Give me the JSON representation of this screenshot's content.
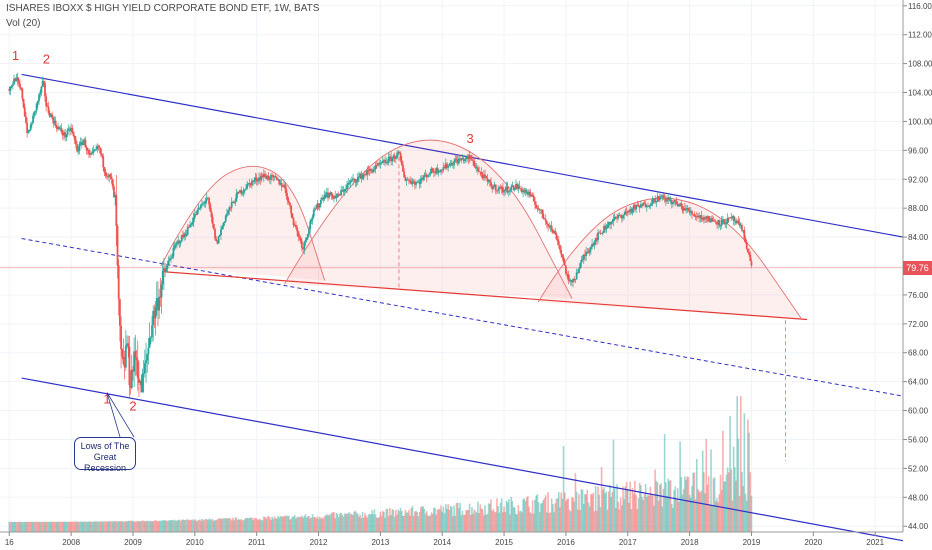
{
  "header": {
    "title": "ISHARES IBOXX $ HIGH YIELD CORPORATE BOND ETF, 1W, BATS",
    "volume_label": "Vol (20)"
  },
  "callout": {
    "line1": "Lows of The",
    "line2": "Great Recession"
  },
  "price_tag": {
    "value": "79.76",
    "color": "#e8535a"
  },
  "colors": {
    "up": "#26a69a",
    "down": "#ef5350",
    "trend": "#3030c8",
    "pattern": "#e53935"
  },
  "chart_data": {
    "type": "candlestick",
    "title": "ISHARES IBOXX $ HIGH YIELD CORPORATE BOND ETF, 1W, BATS",
    "x_tick_labels": [
      "16",
      "2008",
      "2009",
      "2010",
      "2011",
      "2012",
      "2013",
      "2014",
      "2015",
      "2016",
      "2017",
      "2018",
      "2019",
      "2020",
      "2021"
    ],
    "x_tick_years": [
      2007.0,
      2008.0,
      2009.0,
      2010.0,
      2011.0,
      2012.0,
      2013.0,
      2014.0,
      2015.0,
      2016.0,
      2017.0,
      2018.0,
      2019.0,
      2020.0,
      2021.0
    ],
    "xlim": [
      2006.85,
      2021.45
    ],
    "y_ticks": [
      "44.00",
      "48.00",
      "52.00",
      "56.00",
      "60.00",
      "64.00",
      "68.00",
      "72.00",
      "76.00",
      "80.00",
      "84.00",
      "88.00",
      "92.00",
      "96.00",
      "100.00",
      "104.00",
      "108.00",
      "112.00",
      "116.00"
    ],
    "ylim": [
      43.2,
      116.8
    ],
    "last_price": 79.76,
    "price_series": [
      [
        2007.0,
        104.5
      ],
      [
        2007.1,
        106.0
      ],
      [
        2007.2,
        104.0
      ],
      [
        2007.3,
        98.0
      ],
      [
        2007.4,
        101.0
      ],
      [
        2007.5,
        104.0
      ],
      [
        2007.55,
        105.5
      ],
      [
        2007.6,
        102.0
      ],
      [
        2007.75,
        99.5
      ],
      [
        2007.9,
        98.0
      ],
      [
        2008.0,
        99.0
      ],
      [
        2008.1,
        96.0
      ],
      [
        2008.2,
        97.5
      ],
      [
        2008.3,
        95.0
      ],
      [
        2008.45,
        96.5
      ],
      [
        2008.55,
        93.0
      ],
      [
        2008.65,
        92.0
      ],
      [
        2008.72,
        88.0
      ],
      [
        2008.76,
        76.0
      ],
      [
        2008.8,
        68.0
      ],
      [
        2008.85,
        65.0
      ],
      [
        2008.9,
        70.0
      ],
      [
        2008.95,
        64.0
      ],
      [
        2009.05,
        68.0
      ],
      [
        2009.12,
        62.5
      ],
      [
        2009.2,
        66.0
      ],
      [
        2009.3,
        72.0
      ],
      [
        2009.45,
        77.0
      ],
      [
        2009.55,
        80.0
      ],
      [
        2009.7,
        83.0
      ],
      [
        2009.85,
        84.5
      ],
      [
        2010.0,
        87.0
      ],
      [
        2010.2,
        89.5
      ],
      [
        2010.35,
        83.0
      ],
      [
        2010.5,
        87.0
      ],
      [
        2010.7,
        90.0
      ],
      [
        2010.9,
        91.5
      ],
      [
        2011.1,
        92.5
      ],
      [
        2011.3,
        92.0
      ],
      [
        2011.45,
        91.0
      ],
      [
        2011.6,
        86.0
      ],
      [
        2011.75,
        82.5
      ],
      [
        2011.9,
        87.0
      ],
      [
        2012.1,
        90.0
      ],
      [
        2012.3,
        89.5
      ],
      [
        2012.5,
        91.5
      ],
      [
        2012.7,
        92.5
      ],
      [
        2012.9,
        93.5
      ],
      [
        2013.1,
        94.5
      ],
      [
        2013.3,
        95.5
      ],
      [
        2013.4,
        92.0
      ],
      [
        2013.6,
        91.5
      ],
      [
        2013.8,
        93.0
      ],
      [
        2014.0,
        93.5
      ],
      [
        2014.2,
        94.5
      ],
      [
        2014.45,
        95.0
      ],
      [
        2014.6,
        93.0
      ],
      [
        2014.8,
        91.0
      ],
      [
        2015.0,
        90.5
      ],
      [
        2015.2,
        91.0
      ],
      [
        2015.4,
        90.0
      ],
      [
        2015.55,
        88.0
      ],
      [
        2015.7,
        86.0
      ],
      [
        2015.85,
        84.0
      ],
      [
        2015.95,
        81.0
      ],
      [
        2016.05,
        77.5
      ],
      [
        2016.15,
        78.5
      ],
      [
        2016.3,
        81.5
      ],
      [
        2016.5,
        84.0
      ],
      [
        2016.7,
        86.0
      ],
      [
        2016.9,
        87.0
      ],
      [
        2017.1,
        88.0
      ],
      [
        2017.3,
        88.5
      ],
      [
        2017.5,
        89.5
      ],
      [
        2017.7,
        89.0
      ],
      [
        2017.9,
        88.0
      ],
      [
        2018.1,
        87.0
      ],
      [
        2018.3,
        86.5
      ],
      [
        2018.5,
        86.0
      ],
      [
        2018.7,
        86.5
      ],
      [
        2018.85,
        85.0
      ],
      [
        2018.95,
        82.0
      ],
      [
        2019.0,
        79.76
      ]
    ],
    "annotations": [
      {
        "text": "1",
        "x": 2007.1,
        "y": 108.5,
        "color": "#e53935"
      },
      {
        "text": "2",
        "x": 2007.6,
        "y": 108.0,
        "color": "#e53935"
      },
      {
        "text": "3",
        "x": 2014.45,
        "y": 97.0,
        "color": "#e53935"
      },
      {
        "text": "1",
        "x": 2008.58,
        "y": 61.0,
        "color": "#e53935"
      },
      {
        "text": "2",
        "x": 2009.0,
        "y": 60.0,
        "color": "#e53935"
      }
    ],
    "lines": [
      {
        "style": "solid",
        "color": "#3030c8",
        "x": [
          2007.2,
          2021.45
        ],
        "y": [
          106.5,
          84.0
        ]
      },
      {
        "style": "solid",
        "color": "#3030c8",
        "x": [
          2007.2,
          2021.45
        ],
        "y": [
          64.5,
          42.0
        ]
      },
      {
        "style": "dashed",
        "color": "#3030c8",
        "x": [
          2007.2,
          2021.45
        ],
        "y": [
          83.8,
          62.0
        ]
      },
      {
        "style": "solid",
        "color": "#e53935",
        "x": [
          2009.5,
          2019.9
        ],
        "y": [
          79.2,
          72.6
        ]
      },
      {
        "style": "dashed",
        "color": "#e8898c",
        "x": [
          2013.3,
          2013.3
        ],
        "y": [
          96.0,
          77.0
        ]
      },
      {
        "style": "dashed",
        "color": "#e8898c",
        "x": [
          2019.55,
          2019.55
        ],
        "y": [
          72.5,
          53.0
        ]
      }
    ],
    "arcs": [
      {
        "x": [
          2009.45,
          2010.1,
          2010.9,
          2011.6,
          2012.1
        ],
        "y": [
          80.0,
          90.5,
          94.7,
          91.5,
          78.0
        ]
      },
      {
        "x": [
          2011.45,
          2012.4,
          2013.7,
          2015.0,
          2016.1
        ],
        "y": [
          77.5,
          91.5,
          99.0,
          93.5,
          75.5
        ]
      },
      {
        "x": [
          2015.55,
          2016.3,
          2017.5,
          2018.7,
          2019.8
        ],
        "y": [
          75.0,
          85.5,
          90.5,
          86.5,
          72.8
        ]
      }
    ],
    "volume_scale_max": 62.0,
    "volume_note": "volume bars drawn on the price scale; a few spikes near the end reach 54–62"
  }
}
